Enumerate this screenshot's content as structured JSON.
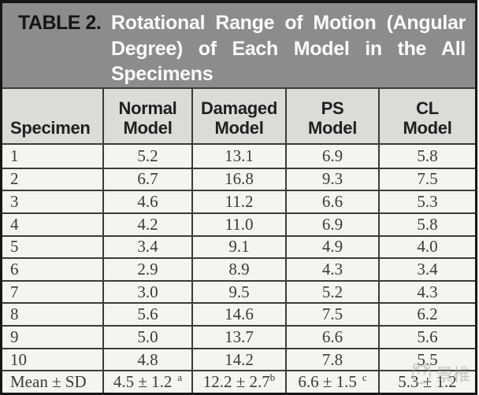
{
  "table": {
    "title_label": "TABLE 2.",
    "title_lines": [
      "Rotational Range of Motion (Angular",
      "Degree) of Each Model in the All",
      "Specimens"
    ],
    "columns": [
      "Specimen",
      "Normal\nModel",
      "Damaged\nModel",
      "PS\nModel",
      "CL\nModel"
    ],
    "rows": [
      {
        "specimen": "1",
        "values": [
          "5.2",
          "13.1",
          "6.9",
          "5.8"
        ]
      },
      {
        "specimen": "2",
        "values": [
          "6.7",
          "16.8",
          "9.3",
          "7.5"
        ]
      },
      {
        "specimen": "3",
        "values": [
          "4.6",
          "11.2",
          "6.6",
          "5.3"
        ]
      },
      {
        "specimen": "4",
        "values": [
          "4.2",
          "11.0",
          "6.9",
          "5.8"
        ]
      },
      {
        "specimen": "5",
        "values": [
          "3.4",
          "9.1",
          "4.9",
          "4.0"
        ]
      },
      {
        "specimen": "6",
        "values": [
          "2.9",
          "8.9",
          "4.3",
          "3.4"
        ]
      },
      {
        "specimen": "7",
        "values": [
          "3.0",
          "9.5",
          "5.2",
          "4.3"
        ]
      },
      {
        "specimen": "8",
        "values": [
          "5.6",
          "14.6",
          "7.5",
          "6.2"
        ]
      },
      {
        "specimen": "9",
        "values": [
          "5.0",
          "13.7",
          "6.6",
          "5.6"
        ]
      },
      {
        "specimen": "10",
        "values": [
          "4.8",
          "14.2",
          "7.8",
          "5.5"
        ]
      }
    ],
    "mean_row": {
      "label": "Mean ± SD",
      "values": [
        {
          "text": "4.5 ± 1.2",
          "sup": "a",
          "gap": true
        },
        {
          "text": "12.2 ± 2.7",
          "sup": "b",
          "gap": false
        },
        {
          "text": "6.6 ± 1.5",
          "sup": "c",
          "gap": true
        },
        {
          "text": "5.3 ± 1.2",
          "sup": "",
          "gap": false
        }
      ]
    }
  },
  "watermark": {
    "icon": "panda-logo-icon",
    "text": "景椎"
  },
  "colors": {
    "title_background": "#8d8c8a",
    "title_text": "#fbfbfb",
    "title_label_text": "#161616",
    "header_background": "#dcdbd8",
    "body_background": "#f5f4f1",
    "border": "#3b3b3b",
    "outer_border": "#161616",
    "data_text": "#3a3a3a"
  }
}
